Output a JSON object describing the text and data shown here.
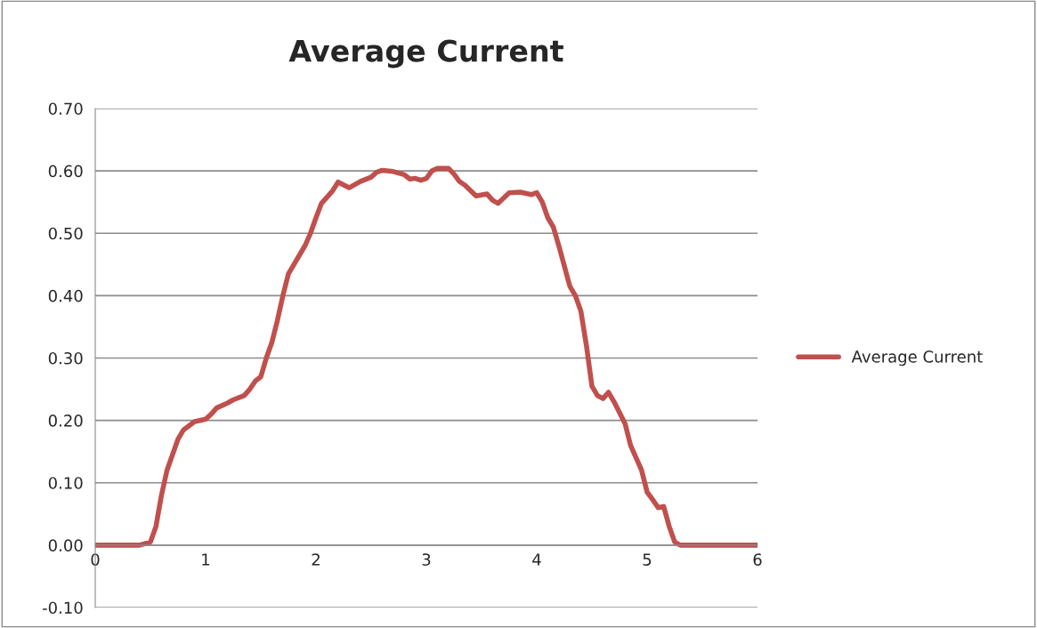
{
  "chart_data": {
    "type": "line",
    "title": "Average Current",
    "x": [
      0,
      0.4,
      0.5,
      0.55,
      0.6,
      0.65,
      0.7,
      0.75,
      0.8,
      0.9,
      1.0,
      1.05,
      1.1,
      1.2,
      1.25,
      1.35,
      1.4,
      1.45,
      1.5,
      1.55,
      1.6,
      1.65,
      1.7,
      1.75,
      1.8,
      1.9,
      1.95,
      2.0,
      2.05,
      2.1,
      2.15,
      2.2,
      2.3,
      2.4,
      2.5,
      2.55,
      2.6,
      2.7,
      2.8,
      2.85,
      2.9,
      2.95,
      3.0,
      3.05,
      3.1,
      3.2,
      3.25,
      3.3,
      3.35,
      3.45,
      3.55,
      3.6,
      3.65,
      3.75,
      3.85,
      3.95,
      4.0,
      4.05,
      4.1,
      4.15,
      4.2,
      4.3,
      4.35,
      4.4,
      4.45,
      4.5,
      4.55,
      4.6,
      4.65,
      4.7,
      4.8,
      4.85,
      4.9,
      4.95,
      5.0,
      5.05,
      5.1,
      5.15,
      5.2,
      5.25,
      5.3,
      5.6,
      6.0
    ],
    "series": [
      {
        "name": "Average Current",
        "color": "#c0504d",
        "values": [
          0,
          0,
          0.005,
          0.03,
          0.08,
          0.12,
          0.145,
          0.17,
          0.185,
          0.198,
          0.202,
          0.21,
          0.22,
          0.228,
          0.233,
          0.24,
          0.25,
          0.263,
          0.27,
          0.3,
          0.325,
          0.36,
          0.4,
          0.435,
          0.45,
          0.48,
          0.5,
          0.525,
          0.548,
          0.558,
          0.568,
          0.582,
          0.573,
          0.583,
          0.59,
          0.598,
          0.601,
          0.599,
          0.594,
          0.587,
          0.588,
          0.585,
          0.588,
          0.6,
          0.604,
          0.604,
          0.595,
          0.583,
          0.577,
          0.56,
          0.563,
          0.553,
          0.548,
          0.565,
          0.566,
          0.562,
          0.565,
          0.55,
          0.525,
          0.51,
          0.48,
          0.415,
          0.4,
          0.375,
          0.32,
          0.255,
          0.24,
          0.235,
          0.245,
          0.23,
          0.195,
          0.16,
          0.14,
          0.12,
          0.085,
          0.073,
          0.06,
          0.062,
          0.03,
          0.005,
          0,
          0,
          0
        ]
      }
    ],
    "xlim": [
      0,
      6
    ],
    "xticks": [
      0,
      1,
      2,
      3,
      4,
      5,
      6
    ],
    "ylim": [
      -0.1,
      0.7
    ],
    "yticks": [
      {
        "value": -0.1,
        "label": "-0.10"
      },
      {
        "value": 0,
        "label": "0.00"
      },
      {
        "value": 0.1,
        "label": "0.10"
      },
      {
        "value": 0.2,
        "label": "0.20"
      },
      {
        "value": 0.3,
        "label": "0.30"
      },
      {
        "value": 0.4,
        "label": "0.40"
      },
      {
        "value": 0.5,
        "label": "0.50"
      },
      {
        "value": 0.6,
        "label": "0.60"
      },
      {
        "value": 0.7,
        "label": "0.70"
      }
    ],
    "grid": "y",
    "legend": "right",
    "marker": "none",
    "line_style": "solid"
  }
}
